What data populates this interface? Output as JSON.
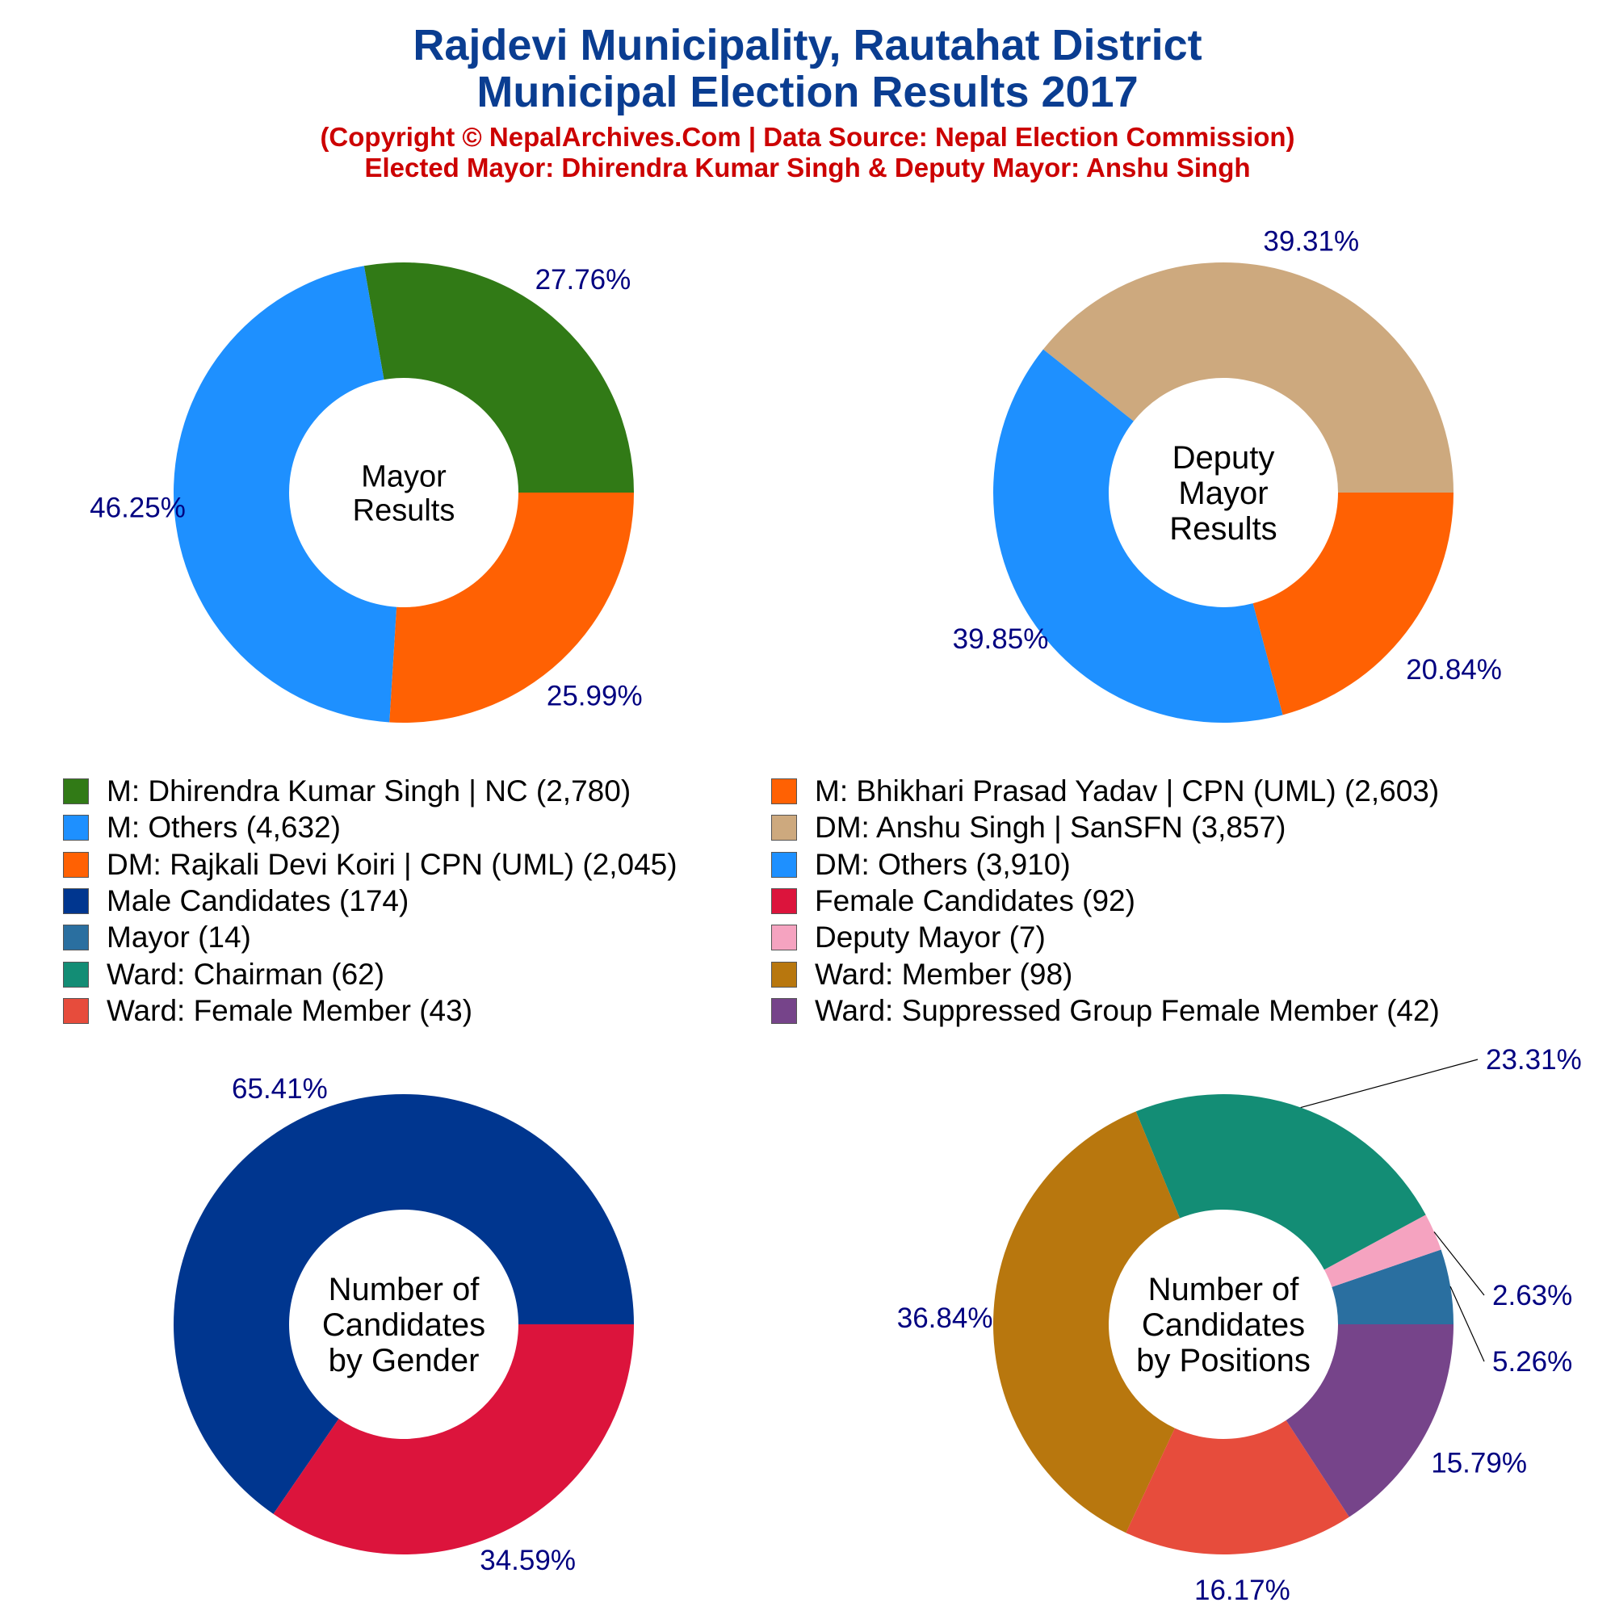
{
  "header": {
    "title_line1": "Rajdevi Municipality, Rautahat District",
    "title_line2": "Municipal Election Results 2017",
    "subtitle_line1": "(Copyright © NepalArchives.Com | Data Source: Nepal Election Commission)",
    "subtitle_line2": "Elected Mayor: Dhirendra Kumar Singh & Deputy Mayor: Anshu Singh"
  },
  "colors": {
    "title": "#0a3d91",
    "subtitle": "#cc0000",
    "percent_label": "#000080"
  },
  "chart_data": [
    {
      "type": "pie",
      "donut": true,
      "center_label": [
        "Mayor",
        "Results"
      ],
      "slices": [
        {
          "label": "M: Dhirendra Kumar Singh | NC",
          "value": 2780,
          "percent_label": "27.76%",
          "color": "#317a16"
        },
        {
          "label": "M: Others",
          "value": 4632,
          "percent_label": "46.25%",
          "color": "#1e90ff"
        },
        {
          "label": "M: Bhikhari Prasad Yadav | CPN (UML)",
          "value": 2603,
          "percent_label": "25.99%",
          "color": "#ff6103"
        }
      ]
    },
    {
      "type": "pie",
      "donut": true,
      "center_label": [
        "Deputy",
        "Mayor",
        "Results"
      ],
      "slices": [
        {
          "label": "DM: Anshu Singh | SanSFN",
          "value": 3857,
          "percent_label": "39.31%",
          "color": "#cda97e"
        },
        {
          "label": "DM: Others",
          "value": 3910,
          "percent_label": "39.85%",
          "color": "#1e90ff"
        },
        {
          "label": "DM: Rajkali Devi Koiri | CPN (UML)",
          "value": 2045,
          "percent_label": "20.84%",
          "color": "#ff6103"
        }
      ]
    },
    {
      "type": "pie",
      "donut": true,
      "center_label": [
        "Number of",
        "Candidates",
        "by Gender"
      ],
      "slices": [
        {
          "label": "Male Candidates",
          "value": 174,
          "percent_label": "65.41%",
          "color": "#00368f"
        },
        {
          "label": "Female Candidates",
          "value": 92,
          "percent_label": "34.59%",
          "color": "#dc143c"
        }
      ]
    },
    {
      "type": "pie",
      "donut": true,
      "center_label": [
        "Number of",
        "Candidates",
        "by Positions"
      ],
      "slices": [
        {
          "label": "Mayor",
          "value": 14,
          "percent_label": "5.26%",
          "color": "#2a6fa0"
        },
        {
          "label": "Deputy Mayor",
          "value": 7,
          "percent_label": "2.63%",
          "color": "#f5a3c0"
        },
        {
          "label": "Ward: Chairman",
          "value": 62,
          "percent_label": "23.31%",
          "color": "#138d75"
        },
        {
          "label": "Ward: Member",
          "value": 98,
          "percent_label": "36.84%",
          "color": "#b8770e"
        },
        {
          "label": "Ward: Female Member",
          "value": 43,
          "percent_label": "16.17%",
          "color": "#e74c3c"
        },
        {
          "label": "Ward: Suppressed Group Female Member",
          "value": 42,
          "percent_label": "15.79%",
          "color": "#76448a"
        }
      ]
    }
  ],
  "legend": [
    {
      "text": "M: Dhirendra Kumar Singh | NC (2,780)",
      "color": "#317a16"
    },
    {
      "text": "M: Bhikhari Prasad Yadav | CPN (UML) (2,603)",
      "color": "#ff6103"
    },
    {
      "text": "M: Others (4,632)",
      "color": "#1e90ff"
    },
    {
      "text": "DM: Anshu Singh | SanSFN (3,857)",
      "color": "#cda97e"
    },
    {
      "text": "DM: Rajkali Devi Koiri | CPN (UML) (2,045)",
      "color": "#ff6103"
    },
    {
      "text": "DM: Others (3,910)",
      "color": "#1e90ff"
    },
    {
      "text": "Male Candidates (174)",
      "color": "#00368f"
    },
    {
      "text": "Female Candidates (92)",
      "color": "#dc143c"
    },
    {
      "text": "Mayor (14)",
      "color": "#2a6fa0"
    },
    {
      "text": "Deputy Mayor (7)",
      "color": "#f5a3c0"
    },
    {
      "text": "Ward: Chairman (62)",
      "color": "#138d75"
    },
    {
      "text": "Ward: Member (98)",
      "color": "#b8770e"
    },
    {
      "text": "Ward: Female Member (43)",
      "color": "#e74c3c"
    },
    {
      "text": "Ward: Suppressed Group Female Member (42)",
      "color": "#76448a"
    }
  ]
}
